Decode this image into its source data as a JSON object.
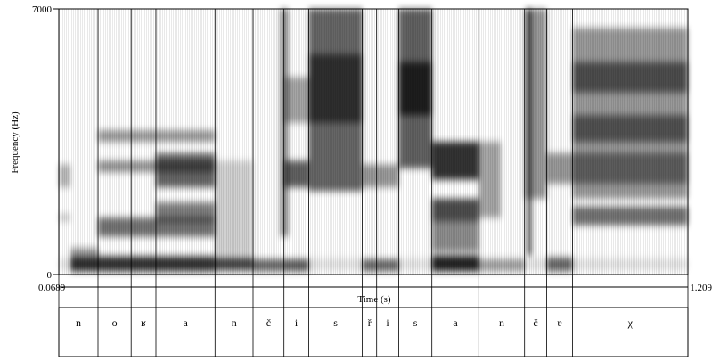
{
  "chart_data": {
    "type": "heatmap",
    "subtype": "spectrogram",
    "ylabel": "Frequency (Hz)",
    "xlabel": "Time (s)",
    "y_ticks": [
      "7000",
      "0"
    ],
    "ylim": [
      0,
      7000
    ],
    "x_start_label": "0.0689",
    "x_end_label": "1.209",
    "xlim": [
      0.0689,
      1.209
    ],
    "grid": false,
    "segments": [
      {
        "label": "n",
        "start": 0.0689,
        "end": 0.14
      },
      {
        "label": "o",
        "start": 0.14,
        "end": 0.2
      },
      {
        "label": "ʁ",
        "start": 0.2,
        "end": 0.245
      },
      {
        "label": "a",
        "start": 0.245,
        "end": 0.352
      },
      {
        "label": "n",
        "start": 0.352,
        "end": 0.421
      },
      {
        "label": "č",
        "start": 0.421,
        "end": 0.477
      },
      {
        "label": "i",
        "start": 0.477,
        "end": 0.522
      },
      {
        "label": "s",
        "start": 0.522,
        "end": 0.619
      },
      {
        "label": "ř",
        "start": 0.619,
        "end": 0.645
      },
      {
        "label": "i",
        "start": 0.645,
        "end": 0.685
      },
      {
        "label": "s",
        "start": 0.685,
        "end": 0.745
      },
      {
        "label": "a",
        "start": 0.745,
        "end": 0.83
      },
      {
        "label": "n",
        "start": 0.83,
        "end": 0.913
      },
      {
        "label": "č",
        "start": 0.913,
        "end": 0.953
      },
      {
        "label": "ɐ",
        "start": 0.953,
        "end": 1.0
      },
      {
        "label": "χ",
        "start": 1.0,
        "end": 1.209
      }
    ],
    "bands": [
      {
        "t0": 0.0689,
        "t1": 0.09,
        "f0": 1400,
        "f1": 1600,
        "v": 0.18
      },
      {
        "t0": 0.0689,
        "t1": 0.09,
        "f0": 2300,
        "f1": 2900,
        "v": 0.28
      },
      {
        "t0": 0.0689,
        "t1": 1.209,
        "f0": 120,
        "f1": 420,
        "v": 0.1
      },
      {
        "t0": 0.09,
        "t1": 0.14,
        "f0": 80,
        "f1": 480,
        "v": 0.8
      },
      {
        "t0": 0.09,
        "t1": 0.14,
        "f0": 500,
        "f1": 700,
        "v": 0.4
      },
      {
        "t0": 0.14,
        "t1": 0.352,
        "f0": 80,
        "f1": 480,
        "v": 0.78
      },
      {
        "t0": 0.14,
        "t1": 0.352,
        "f0": 1000,
        "f1": 1500,
        "v": 0.55
      },
      {
        "t0": 0.14,
        "t1": 0.352,
        "f0": 2700,
        "f1": 3000,
        "v": 0.42
      },
      {
        "t0": 0.14,
        "t1": 0.352,
        "f0": 3500,
        "f1": 3800,
        "v": 0.4
      },
      {
        "t0": 0.245,
        "t1": 0.352,
        "f0": 2300,
        "f1": 3200,
        "v": 0.6
      },
      {
        "t0": 0.245,
        "t1": 0.352,
        "f0": 1400,
        "f1": 1900,
        "v": 0.5
      },
      {
        "t0": 0.352,
        "t1": 0.421,
        "f0": 100,
        "f1": 450,
        "v": 0.7
      },
      {
        "t0": 0.352,
        "t1": 0.421,
        "f0": 500,
        "f1": 3000,
        "v": 0.18
      },
      {
        "t0": 0.421,
        "t1": 0.477,
        "f0": 80,
        "f1": 400,
        "v": 0.55
      },
      {
        "t0": 0.47,
        "t1": 0.485,
        "f0": 1000,
        "f1": 7000,
        "v": 0.45
      },
      {
        "t0": 0.477,
        "t1": 0.522,
        "f0": 2300,
        "f1": 3000,
        "v": 0.62
      },
      {
        "t0": 0.477,
        "t1": 0.522,
        "f0": 4000,
        "f1": 5200,
        "v": 0.35
      },
      {
        "t0": 0.477,
        "t1": 0.522,
        "f0": 80,
        "f1": 400,
        "v": 0.6
      },
      {
        "t0": 0.522,
        "t1": 0.619,
        "f0": 2200,
        "f1": 7000,
        "v": 0.6
      },
      {
        "t0": 0.522,
        "t1": 0.619,
        "f0": 4000,
        "f1": 5800,
        "v": 0.55
      },
      {
        "t0": 0.619,
        "t1": 0.645,
        "f0": 80,
        "f1": 400,
        "v": 0.55
      },
      {
        "t0": 0.619,
        "t1": 0.685,
        "f0": 2300,
        "f1": 2900,
        "v": 0.4
      },
      {
        "t0": 0.645,
        "t1": 0.685,
        "f0": 80,
        "f1": 400,
        "v": 0.55
      },
      {
        "t0": 0.685,
        "t1": 0.745,
        "f0": 2800,
        "f1": 7000,
        "v": 0.62
      },
      {
        "t0": 0.685,
        "t1": 0.745,
        "f0": 4200,
        "f1": 5600,
        "v": 0.7
      },
      {
        "t0": 0.745,
        "t1": 0.83,
        "f0": 80,
        "f1": 500,
        "v": 0.85
      },
      {
        "t0": 0.745,
        "t1": 0.83,
        "f0": 1400,
        "f1": 2000,
        "v": 0.7
      },
      {
        "t0": 0.745,
        "t1": 0.83,
        "f0": 2500,
        "f1": 3500,
        "v": 0.8
      },
      {
        "t0": 0.745,
        "t1": 0.83,
        "f0": 600,
        "f1": 1400,
        "v": 0.45
      },
      {
        "t0": 0.83,
        "t1": 0.87,
        "f0": 1500,
        "f1": 3500,
        "v": 0.35
      },
      {
        "t0": 0.83,
        "t1": 0.913,
        "f0": 80,
        "f1": 400,
        "v": 0.3
      },
      {
        "t0": 0.913,
        "t1": 0.953,
        "f0": 2000,
        "f1": 7000,
        "v": 0.4
      },
      {
        "t0": 0.918,
        "t1": 0.925,
        "f0": 500,
        "f1": 7000,
        "v": 0.8
      },
      {
        "t0": 0.953,
        "t1": 1.0,
        "f0": 80,
        "f1": 450,
        "v": 0.55
      },
      {
        "t0": 0.953,
        "t1": 1.209,
        "f0": 2400,
        "f1": 3200,
        "v": 0.4
      },
      {
        "t0": 1.0,
        "t1": 1.209,
        "f0": 1300,
        "f1": 1800,
        "v": 0.55
      },
      {
        "t0": 1.0,
        "t1": 1.209,
        "f0": 2000,
        "f1": 6500,
        "v": 0.4
      },
      {
        "t0": 1.0,
        "t1": 1.209,
        "f0": 3500,
        "f1": 4200,
        "v": 0.48
      },
      {
        "t0": 1.0,
        "t1": 1.209,
        "f0": 4800,
        "f1": 5600,
        "v": 0.5
      }
    ]
  }
}
